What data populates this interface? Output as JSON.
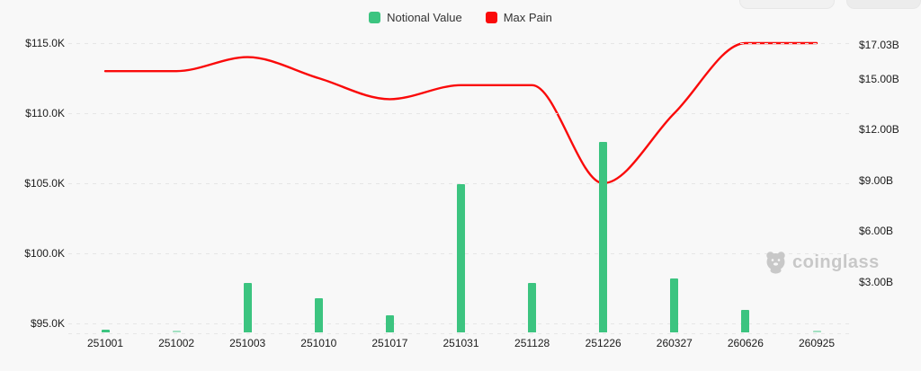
{
  "legend": {
    "items": [
      {
        "label": "Notional Value",
        "color": "#3cc480"
      },
      {
        "label": "Max Pain",
        "color": "#fa0a0a"
      }
    ]
  },
  "watermark": {
    "text": "coinglass"
  },
  "colors": {
    "background": "#f8f8f8",
    "bar_green": "#3cc480",
    "line_red": "#fa0a0a",
    "grid": "#e6e6e6",
    "axis_text": "#1b1b1b",
    "watermark_gray": "#c8c8c8"
  },
  "chart_data": {
    "type": "combo",
    "title": "",
    "legend_position": "top-center",
    "grid": true,
    "categories": [
      "251001",
      "251002",
      "251003",
      "251010",
      "251017",
      "251031",
      "251128",
      "251226",
      "260327",
      "260626",
      "260925"
    ],
    "series": [
      {
        "name": "Notional Value",
        "type": "bar",
        "axis": "right",
        "unit": "$B",
        "color": "#3cc480",
        "values": [
          0.15,
          0.08,
          2.9,
          2.0,
          1.0,
          8.8,
          2.9,
          11.3,
          3.2,
          1.35,
          0.1
        ],
        "opacities": [
          1,
          0.45,
          1,
          1,
          1,
          1,
          1,
          1,
          1,
          1,
          0.45
        ]
      },
      {
        "name": "Max Pain",
        "type": "line",
        "axis": "left",
        "unit": "$K",
        "color": "#fa0a0a",
        "values": [
          113.0,
          113.0,
          114.0,
          112.5,
          111.0,
          112.0,
          112.0,
          105.0,
          110.0,
          115.0,
          115.0
        ]
      }
    ],
    "left_axis": {
      "unit": "$K",
      "min": 95,
      "max": 115,
      "ticks": [
        {
          "label": "$115.0K",
          "value": 115
        },
        {
          "label": "$110.0K",
          "value": 110
        },
        {
          "label": "$105.0K",
          "value": 105
        },
        {
          "label": "$100.0K",
          "value": 100
        },
        {
          "label": "$95.0K",
          "value": 95
        }
      ]
    },
    "right_axis": {
      "unit": "$B",
      "min": 0,
      "max": 17.03,
      "ticks": [
        {
          "label": "$17.03B",
          "value": 17.03
        },
        {
          "label": "$15.00B",
          "value": 15
        },
        {
          "label": "$12.00B",
          "value": 12
        },
        {
          "label": "$9.00B",
          "value": 9
        },
        {
          "label": "$6.00B",
          "value": 6
        },
        {
          "label": "$3.00B",
          "value": 3
        }
      ]
    }
  }
}
